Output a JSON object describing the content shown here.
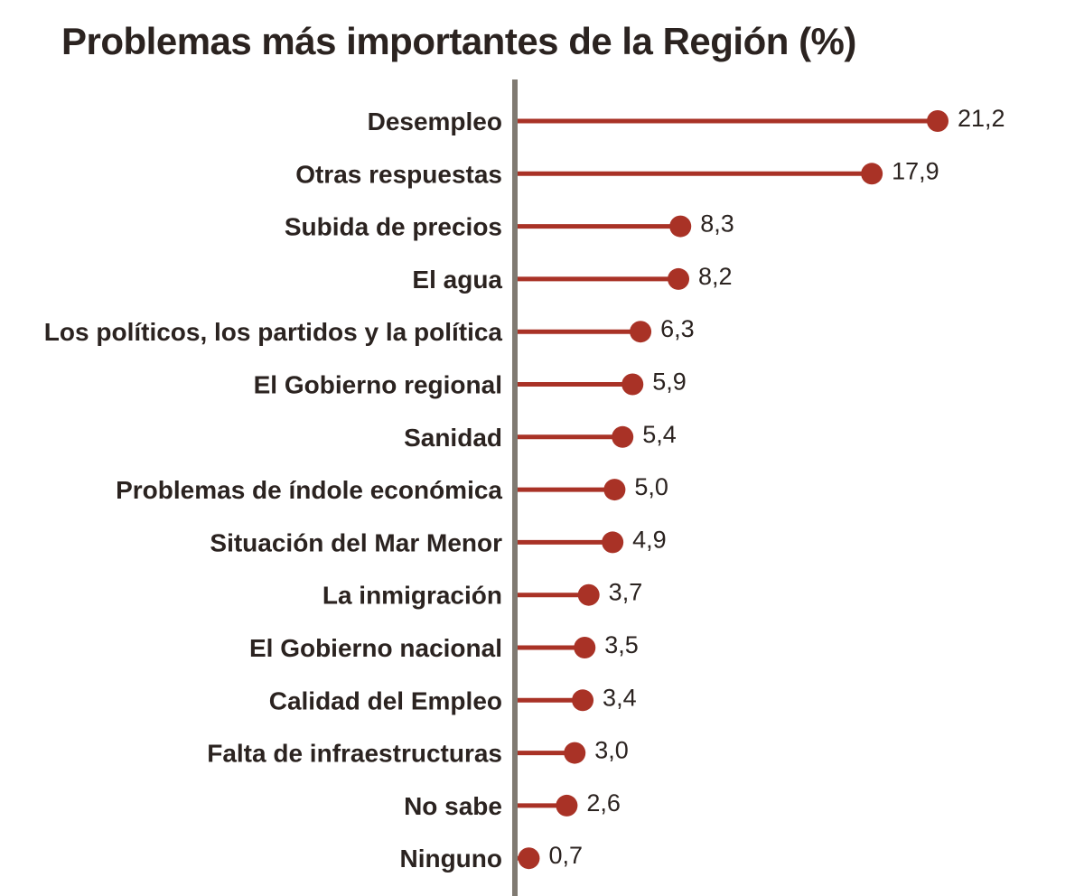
{
  "chart_data": {
    "type": "lollipop",
    "title": "Problemas más importantes de la Región (%)",
    "categories": [
      "Desempleo",
      "Otras respuestas",
      "Subida de precios",
      "El agua",
      "Los políticos, los partidos y la política",
      "El Gobierno regional",
      "Sanidad",
      "Problemas de índole económica",
      "Situación del Mar Menor",
      "La inmigración",
      "El Gobierno nacional",
      "Calidad del Empleo",
      "Falta de infraestructuras",
      "No sabe",
      "Ninguno"
    ],
    "values": [
      21.2,
      17.9,
      8.3,
      8.2,
      6.3,
      5.9,
      5.4,
      5.0,
      4.9,
      3.7,
      3.5,
      3.4,
      3.0,
      2.6,
      0.7
    ],
    "value_labels": [
      "21,2",
      "17,9",
      "8,3",
      "8,2",
      "6,3",
      "5,9",
      "5,4",
      "5,0",
      "4,9",
      "3,7",
      "3,5",
      "3,4",
      "3,0",
      "2,6",
      "0,7"
    ],
    "xlim": [
      0,
      21.2
    ],
    "grid": false,
    "colors": {
      "bar": "#a93226",
      "axis": "#807a72",
      "text": "#2b2320"
    }
  }
}
